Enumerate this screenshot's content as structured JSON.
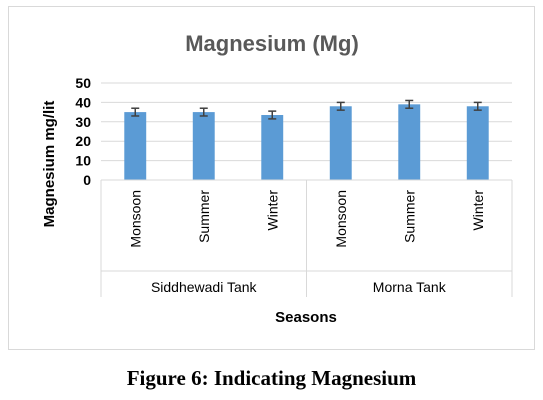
{
  "chart_data": {
    "type": "bar",
    "title": "Magnesium (Mg)",
    "ylabel": "Magnesium mg/lit",
    "xlabel": "Seasons",
    "ylim": [
      0,
      50
    ],
    "yticks": [
      0,
      10,
      20,
      30,
      40,
      50
    ],
    "grid": true,
    "legend": "none",
    "groups": [
      "Siddhewadi Tank",
      "Morna Tank"
    ],
    "categories": [
      "Monsoon",
      "Summer",
      "Winter",
      "Monsoon",
      "Summer",
      "Winter"
    ],
    "group_of_category": [
      0,
      0,
      0,
      1,
      1,
      1
    ],
    "values": [
      35,
      35,
      33.5,
      38,
      39,
      38
    ],
    "errors": [
      2,
      2,
      2,
      2,
      2,
      2
    ],
    "bar_color": "#5b9bd5",
    "error_color": "#404040"
  },
  "caption": "Figure 6: Indicating Magnesium"
}
